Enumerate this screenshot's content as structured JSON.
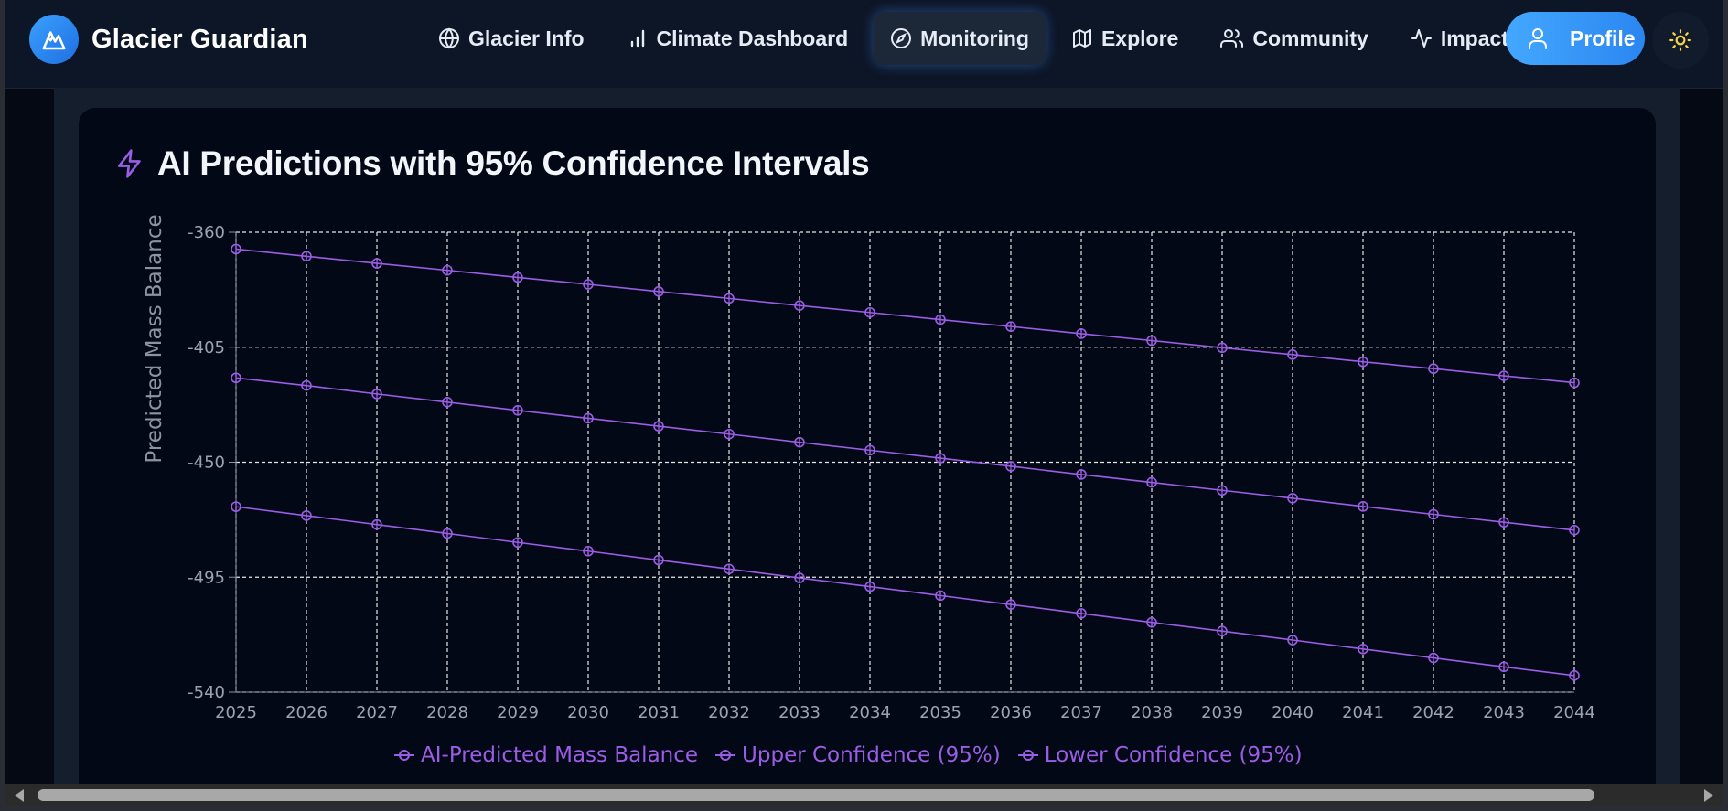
{
  "header": {
    "brand": "Glacier Guardian",
    "nav": [
      {
        "label": "Glacier Info",
        "icon": "globe-icon"
      },
      {
        "label": "Climate Dashboard",
        "icon": "bar-chart-icon"
      },
      {
        "label": "Monitoring",
        "icon": "compass-icon",
        "active": true
      },
      {
        "label": "Explore",
        "icon": "map-icon"
      },
      {
        "label": "Community",
        "icon": "users-icon"
      },
      {
        "label": "Impact",
        "icon": "activity-icon"
      }
    ],
    "profile_label": "Profile",
    "theme_icon": "sun-icon"
  },
  "card": {
    "title": "AI Predictions with 95% Confidence Intervals",
    "title_icon": "lightning-icon"
  },
  "colors": {
    "accent": "#9b5de5",
    "brand_blue": "#3aa0ff",
    "grid": "#e6e6e6"
  },
  "chart_data": {
    "type": "line",
    "title": "",
    "xlabel": "",
    "ylabel": "Predicted Mass Balance",
    "x": [
      2025,
      2026,
      2027,
      2028,
      2029,
      2030,
      2031,
      2032,
      2033,
      2034,
      2035,
      2036,
      2037,
      2038,
      2039,
      2040,
      2041,
      2042,
      2043,
      2044
    ],
    "ylim": [
      -540,
      -360
    ],
    "yticks": [
      -360,
      -405,
      -450,
      -495,
      -540
    ],
    "grid": true,
    "legend_position": "bottom",
    "series": [
      {
        "name": "AI-Predicted Mass Balance",
        "values": [
          -417,
          -420,
          -423.3,
          -426.5,
          -429.7,
          -432.8,
          -435.9,
          -439,
          -442.2,
          -445.3,
          -448.4,
          -451.6,
          -454.8,
          -457.9,
          -461,
          -464.1,
          -467.3,
          -470.4,
          -473.5,
          -476.6
        ]
      },
      {
        "name": "Upper Confidence (95%)",
        "values": [
          -366.6,
          -369.4,
          -372.2,
          -374.9,
          -377.7,
          -380.4,
          -383.2,
          -385.9,
          -388.7,
          -391.4,
          -394.2,
          -396.9,
          -399.7,
          -402.4,
          -405.2,
          -407.9,
          -410.7,
          -413.4,
          -416.2,
          -418.9
        ]
      },
      {
        "name": "Lower Confidence (95%)",
        "values": [
          -467.4,
          -470.9,
          -474.4,
          -477.9,
          -481.4,
          -484.8,
          -488.3,
          -491.8,
          -495.3,
          -498.7,
          -502.2,
          -505.7,
          -509.2,
          -512.7,
          -516.1,
          -519.6,
          -523.1,
          -526.6,
          -530.1,
          -533.5
        ]
      }
    ]
  }
}
